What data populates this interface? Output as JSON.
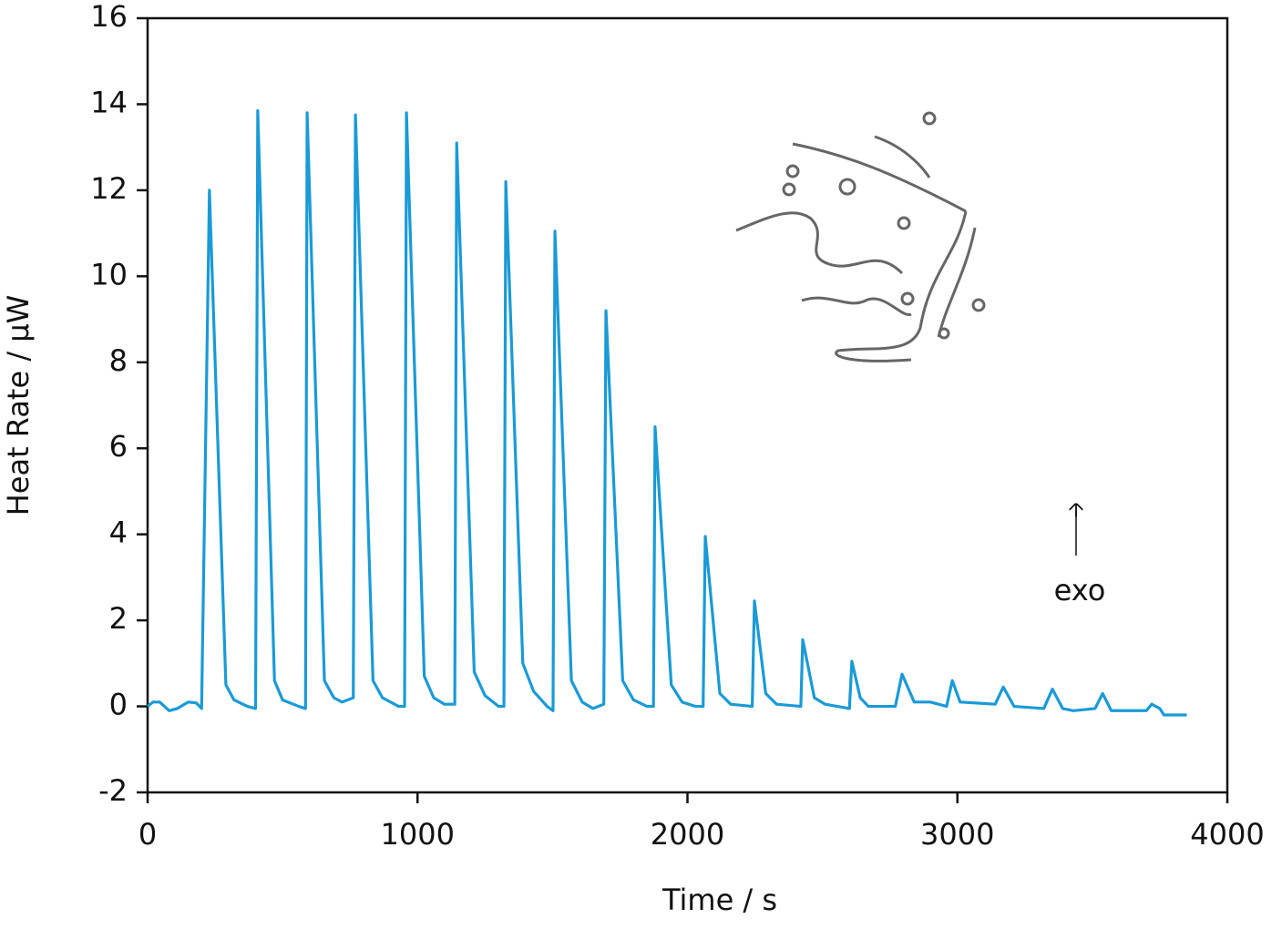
{
  "chart_data": {
    "type": "line",
    "xlabel": "Time / s",
    "ylabel": "Heat Rate / μW",
    "annotations": [
      {
        "text": "exo"
      }
    ],
    "color": "#1a9ad6",
    "x": [
      0,
      20,
      45,
      80,
      110,
      150,
      180,
      200,
      229,
      290,
      320,
      370,
      400,
      408,
      470,
      500,
      560,
      585,
      591,
      655,
      690,
      720,
      762,
      770,
      835,
      870,
      930,
      952,
      959,
      1025,
      1060,
      1100,
      1138,
      1145,
      1210,
      1250,
      1300,
      1320,
      1327,
      1390,
      1430,
      1480,
      1502,
      1509,
      1570,
      1610,
      1650,
      1690,
      1698,
      1760,
      1800,
      1850,
      1874,
      1880,
      1940,
      1980,
      2030,
      2058,
      2066,
      2120,
      2160,
      2240,
      2248,
      2290,
      2330,
      2420,
      2427,
      2470,
      2510,
      2600,
      2609,
      2640,
      2670,
      2770,
      2795,
      2840,
      2900,
      2960,
      2981,
      3010,
      3140,
      3170,
      3210,
      3320,
      3352,
      3390,
      3430,
      3510,
      3538,
      3570,
      3700,
      3720,
      3750,
      3765,
      3850
    ],
    "values": [
      0,
      0.1,
      0.1,
      -0.1,
      -0.05,
      0.1,
      0.08,
      -0.05,
      12,
      0.5,
      0.15,
      0,
      -0.05,
      13.85,
      0.6,
      0.15,
      0,
      -0.05,
      13.8,
      0.6,
      0.2,
      0.1,
      0.2,
      13.75,
      0.6,
      0.2,
      0,
      0,
      13.8,
      0.7,
      0.2,
      0.05,
      0.05,
      13.1,
      0.8,
      0.25,
      0,
      0,
      12.2,
      1,
      0.35,
      0,
      -0.1,
      11.05,
      0.6,
      0.1,
      -0.05,
      0.05,
      9.2,
      0.6,
      0.15,
      0,
      0,
      6.5,
      0.5,
      0.1,
      0,
      0,
      3.95,
      0.3,
      0.05,
      0,
      2.45,
      0.3,
      0.05,
      0,
      1.55,
      0.2,
      0.05,
      -0.05,
      1.05,
      0.2,
      0,
      0,
      0.75,
      0.1,
      0.1,
      0,
      0.6,
      0.1,
      0.05,
      0.45,
      0,
      -0.05,
      0.4,
      -0.05,
      -0.1,
      -0.05,
      0.3,
      -0.1,
      -0.1,
      0.05,
      -0.05,
      -0.2,
      -0.2
    ],
    "xlim": [
      0,
      4000
    ],
    "xticks": [
      0,
      1000,
      2000,
      3000,
      4000
    ],
    "ylim": [
      -2,
      16
    ],
    "yticks": [
      -2,
      0,
      2,
      4,
      6,
      8,
      10,
      12,
      14,
      16
    ],
    "grid": false
  }
}
